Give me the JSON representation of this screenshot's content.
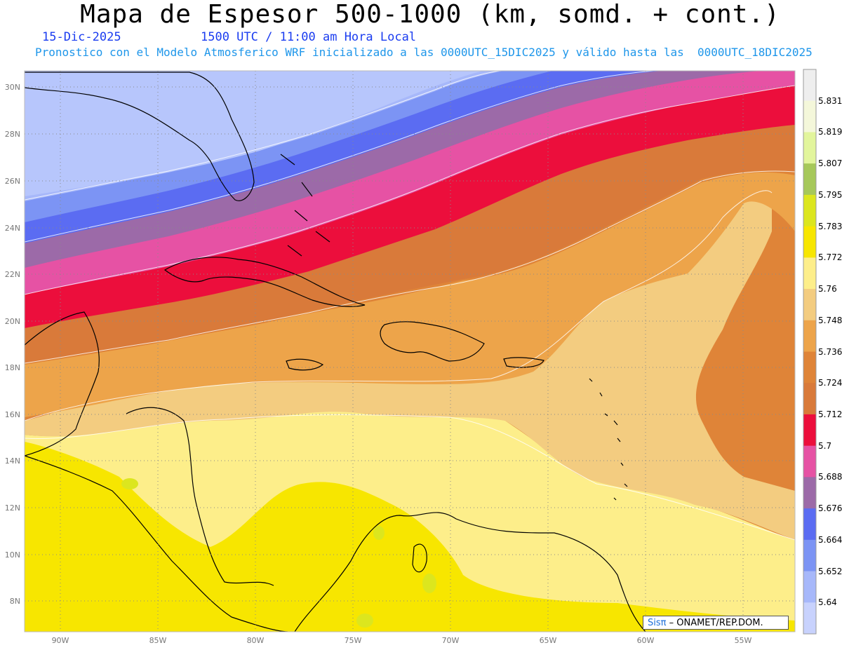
{
  "header": {
    "title": "Mapa de Espesor 500-1000 (km, somd. + cont.)",
    "date": "15-Dic-2025",
    "time": "1500 UTC / 11:00 am Hora Local",
    "description": "Pronostico con el Modelo Atmosferico WRF inicializado a las 0000UTC_15DIC2025 y válido hasta las  0000UTC_18DIC2025"
  },
  "map": {
    "lat_labels": [
      "30N",
      "28N",
      "26N",
      "24N",
      "22N",
      "20N",
      "18N",
      "16N",
      "14N",
      "12N",
      "10N",
      "8N"
    ],
    "lon_labels": [
      "90W",
      "85W",
      "80W",
      "75W",
      "70W",
      "65W",
      "60W",
      "55W"
    ]
  },
  "colorbar": {
    "labels": [
      "5.831",
      "5.819",
      "5.807",
      "5.795",
      "5.783",
      "5.772",
      "5.76",
      "5.748",
      "5.736",
      "5.724",
      "5.712",
      "5.7",
      "5.688",
      "5.676",
      "5.664",
      "5.652",
      "5.64"
    ],
    "colors": [
      "#eeeeee",
      "#f4f7da",
      "#e2f59c",
      "#a6c85a",
      "#dce61e",
      "#f7e600",
      "#fdee8a",
      "#f3cc80",
      "#eda44a",
      "#df8438",
      "#d97a3a",
      "#ec0e3c",
      "#e652a4",
      "#9c6aa8",
      "#5b6cf2",
      "#7c94f4",
      "#a7b8fa",
      "#c8d2fd"
    ]
  },
  "credit": {
    "brand": "Sisπ",
    "text": " – ONAMET/REP.DOM."
  }
}
